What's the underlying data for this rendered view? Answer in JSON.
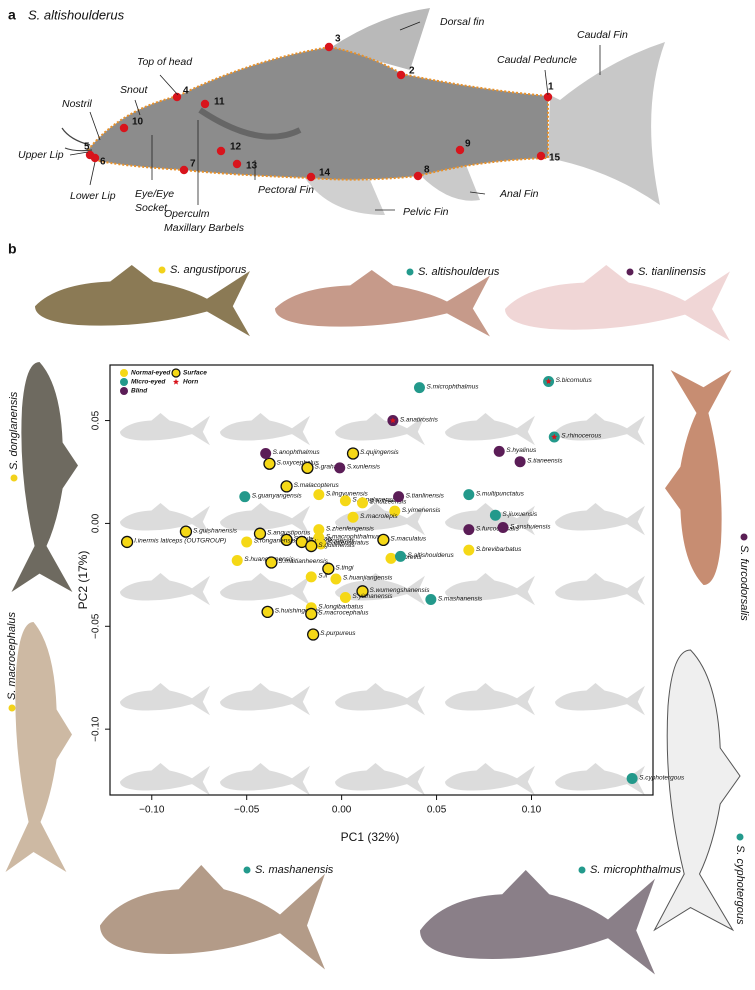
{
  "panel_a": {
    "label": "a",
    "species": "S. altishoulderus",
    "parts": [
      "Dorsal fin",
      "Caudal Fin",
      "Caudal Peduncle",
      "Top of head",
      "Snout",
      "Nostril",
      "Upper Lip",
      "Lower Lip",
      "Eye/Eye",
      "Socket",
      "Operculm",
      "Maxillary Barbels",
      "Pectoral Fin",
      "Pelvic Fin",
      "Anal Fin"
    ],
    "landmarks": [
      "1",
      "2",
      "3",
      "4",
      "5",
      "6",
      "7",
      "8",
      "9",
      "10",
      "11",
      "12",
      "13",
      "14",
      "15"
    ]
  },
  "panel_b": {
    "label": "b",
    "photos": [
      {
        "species": "S. angustiporus",
        "color": "#f2d21b"
      },
      {
        "species": "S. altishoulderus",
        "color": "#239a8c"
      },
      {
        "species": "S. tianlinensis",
        "color": "#5a1f55"
      },
      {
        "species": "S. donglanensis",
        "color": "#f2d21b"
      },
      {
        "species": "S. macrocephalus",
        "color": "#f2d21b"
      },
      {
        "species": "S. furcodorsalis",
        "color": "#5a1f55"
      },
      {
        "species": "S. cyphotergous",
        "color": "#239a8c"
      },
      {
        "species": "S. mashanensis",
        "color": "#239a8c"
      },
      {
        "species": "S. microphthalmus",
        "color": "#239a8c"
      }
    ]
  },
  "chart_data": {
    "type": "scatter",
    "xlabel": "PC1 (32%)",
    "ylabel": "PC2 (17%)",
    "xlim": [
      -0.122,
      0.164
    ],
    "ylim": [
      -0.132,
      0.077
    ],
    "xticks": [
      {
        "value": -0.1,
        "label": "−0.10"
      },
      {
        "value": -0.05,
        "label": "−0.05"
      },
      {
        "value": 0,
        "label": "0.00"
      },
      {
        "value": 0.05,
        "label": "0.05"
      },
      {
        "value": 0.1,
        "label": "0.10"
      }
    ],
    "yticks": [
      {
        "value": 0.05,
        "label": "0.05"
      },
      {
        "value": 0,
        "label": "0.00"
      },
      {
        "value": -0.05,
        "label": "−0.05"
      },
      {
        "value": -0.1,
        "label": "−0.10"
      }
    ],
    "markers": {
      "surface": "Surface",
      "horn": "Horn"
    },
    "series": [
      {
        "name": "Normal-eyed",
        "color": "#f5d816",
        "labels": [
          "S.qujingensis",
          "S.oxycephalus",
          "S.grahami",
          "S.malacopterus",
          "S.lingyunensis",
          "S.donglanensis",
          "S.huizeensis",
          "S.yimenensis",
          "S.macrolepis",
          "S.guishanensis",
          "S.angustiporus",
          "S.qiubeiensis",
          "S.zhenfengensis",
          "S.macrophthalmus",
          "I.inermis laticeps (OUTGROUP)",
          "S.ronganensis",
          "S.yangzonensis",
          "S.lateristriatus",
          "S.guilinensis",
          "S.maculatus",
          "S.brevibarbatus",
          "S.brevis",
          "S.huanglianensis",
          "S.maitianheensis",
          "S.tingi",
          "S.li",
          "S.huanjiangensis",
          "S.wumengshanensis",
          "S.yishanensis",
          "S.longibarbatus",
          "S.huishingensis",
          "S.macrocephalus",
          "S.purpureus"
        ],
        "x": [
          0.006,
          -0.038,
          -0.018,
          -0.029,
          -0.012,
          0.002,
          0.011,
          0.028,
          0.006,
          -0.082,
          -0.043,
          -0.029,
          -0.012,
          -0.012,
          -0.113,
          -0.05,
          -0.021,
          -0.011,
          -0.016,
          0.022,
          0.067,
          0.026,
          -0.055,
          -0.037,
          -0.007,
          -0.016,
          -0.003,
          0.011,
          0.002,
          -0.016,
          -0.039,
          -0.016,
          -0.015
        ],
        "y": [
          0.034,
          0.029,
          0.027,
          0.018,
          0.014,
          0.011,
          0.01,
          0.006,
          0.003,
          -0.004,
          -0.005,
          -0.008,
          -0.003,
          -0.007,
          -0.009,
          -0.009,
          -0.009,
          -0.01,
          -0.011,
          -0.008,
          -0.013,
          -0.017,
          -0.018,
          -0.019,
          -0.022,
          -0.026,
          -0.027,
          -0.033,
          -0.036,
          -0.041,
          -0.043,
          -0.044,
          -0.054
        ],
        "surface": [
          true,
          true,
          true,
          true,
          false,
          false,
          false,
          false,
          false,
          true,
          true,
          true,
          false,
          false,
          true,
          false,
          true,
          false,
          true,
          true,
          false,
          false,
          false,
          true,
          true,
          false,
          false,
          true,
          false,
          false,
          true,
          true,
          true
        ],
        "horn": [
          false,
          false,
          false,
          false,
          false,
          false,
          false,
          false,
          false,
          false,
          false,
          false,
          false,
          false,
          false,
          false,
          false,
          false,
          false,
          false,
          false,
          false,
          false,
          false,
          false,
          false,
          false,
          false,
          false,
          false,
          false,
          false,
          false
        ]
      },
      {
        "name": "Micro-eyed",
        "color": "#23998b",
        "labels": [
          "S.microphthalmus",
          "S.bicornutus",
          "S.rhinocerous",
          "S.guanyangensis",
          "S.multipunctatus",
          "S.jiuxuensis",
          "S.altishoulderus",
          "S.mashanensis",
          "S.cyphotergous"
        ],
        "x": [
          0.041,
          0.109,
          0.112,
          -0.051,
          0.067,
          0.081,
          0.031,
          0.047,
          0.153
        ],
        "y": [
          0.066,
          0.069,
          0.042,
          0.013,
          0.014,
          0.004,
          -0.016,
          -0.037,
          -0.124
        ],
        "surface": [
          false,
          false,
          false,
          false,
          false,
          false,
          false,
          false,
          false
        ],
        "horn": [
          false,
          true,
          true,
          false,
          false,
          false,
          false,
          false,
          false
        ]
      },
      {
        "name": "Blind",
        "color": "#5b1d57",
        "labels": [
          "S.anatirostris",
          "S.anophthalmus",
          "S.hyalinus",
          "S.tianeensis",
          "S.xunlensis",
          "S.tianlinensis",
          "S.furcodorsalis",
          "S.anshuiensis"
        ],
        "x": [
          0.027,
          -0.04,
          0.083,
          0.094,
          -0.001,
          0.03,
          0.067,
          0.085
        ],
        "y": [
          0.05,
          0.034,
          0.035,
          0.03,
          0.027,
          0.013,
          -0.003,
          -0.002
        ],
        "surface": [
          false,
          false,
          false,
          false,
          false,
          false,
          false,
          false
        ],
        "horn": [
          true,
          false,
          false,
          false,
          false,
          false,
          false,
          false
        ]
      }
    ]
  }
}
